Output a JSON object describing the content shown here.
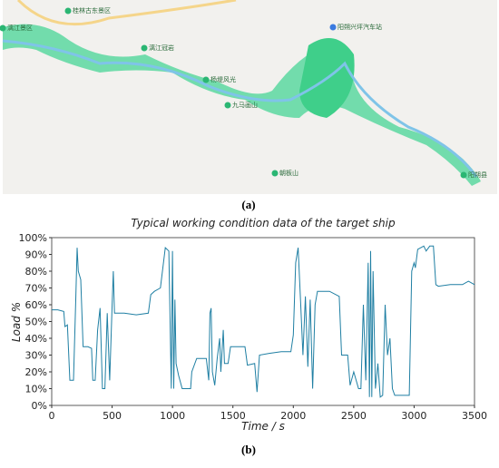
{
  "map": {
    "caption": "(a)",
    "labels": [
      "桂林古东景区",
      "漓江景区",
      "漓江冠岩",
      "杨堤风光",
      "阳朔兴坪汽车站",
      "九马画山",
      "朝板山",
      "阳朔县"
    ]
  },
  "chart_data": {
    "type": "line",
    "caption": "(b)",
    "title": "Typical working condition data of the target ship",
    "x_label": "Time / s",
    "y_label": "Load %",
    "xlim": [
      0,
      3500
    ],
    "xticks": [
      0,
      500,
      1000,
      1500,
      2000,
      2500,
      3000,
      3500
    ],
    "ylim": [
      0,
      100
    ],
    "yticks": [
      {
        "value": 0,
        "label": "0%"
      },
      {
        "value": 10,
        "label": "10%"
      },
      {
        "value": 20,
        "label": "20%"
      },
      {
        "value": 30,
        "label": "30%"
      },
      {
        "value": 40,
        "label": "40%"
      },
      {
        "value": 50,
        "label": "50%"
      },
      {
        "value": 60,
        "label": "60%"
      },
      {
        "value": 70,
        "label": "70%"
      },
      {
        "value": 80,
        "label": "80%"
      },
      {
        "value": 90,
        "label": "90%"
      },
      {
        "value": 100,
        "label": "100%"
      }
    ],
    "series": [
      {
        "color": "#1f7fa3",
        "x": [
          0,
          50,
          100,
          110,
          130,
          150,
          180,
          200,
          210,
          220,
          240,
          260,
          300,
          330,
          340,
          360,
          380,
          400,
          420,
          440,
          460,
          480,
          500,
          510,
          520,
          600,
          700,
          800,
          820,
          850,
          900,
          940,
          970,
          990,
          1000,
          1010,
          1020,
          1030,
          1050,
          1080,
          1150,
          1160,
          1200,
          1280,
          1300,
          1310,
          1320,
          1330,
          1350,
          1370,
          1390,
          1400,
          1420,
          1430,
          1460,
          1480,
          1600,
          1620,
          1680,
          1700,
          1720,
          1800,
          1900,
          1980,
          2000,
          2020,
          2040,
          2060,
          2080,
          2100,
          2120,
          2140,
          2160,
          2180,
          2200,
          2300,
          2380,
          2400,
          2450,
          2470,
          2500,
          2540,
          2560,
          2580,
          2600,
          2620,
          2630,
          2640,
          2650,
          2660,
          2680,
          2700,
          2720,
          2740,
          2760,
          2780,
          2800,
          2820,
          2840,
          2900,
          2960,
          2980,
          3000,
          3010,
          3030,
          3080,
          3100,
          3130,
          3160,
          3180,
          3200,
          3300,
          3400,
          3450,
          3500
        ],
        "values": [
          57,
          57,
          56,
          47,
          48,
          15,
          15,
          65,
          94,
          80,
          75,
          35,
          35,
          34,
          15,
          15,
          45,
          58,
          10,
          10,
          55,
          15,
          60,
          80,
          55,
          55,
          54,
          55,
          66,
          68,
          70,
          94,
          92,
          10,
          92,
          10,
          63,
          25,
          18,
          10,
          10,
          20,
          28,
          28,
          15,
          55,
          58,
          20,
          12,
          28,
          40,
          20,
          45,
          25,
          25,
          35,
          35,
          24,
          25,
          8,
          30,
          31,
          32,
          32,
          42,
          85,
          94,
          62,
          30,
          65,
          23,
          63,
          10,
          60,
          68,
          68,
          65,
          30,
          30,
          12,
          20,
          10,
          10,
          60,
          15,
          85,
          5,
          92,
          5,
          80,
          10,
          25,
          5,
          6,
          60,
          30,
          40,
          10,
          6,
          6,
          6,
          80,
          85,
          82,
          93,
          95,
          92,
          95,
          95,
          72,
          71,
          72,
          72,
          74,
          72
        ]
      }
    ]
  }
}
